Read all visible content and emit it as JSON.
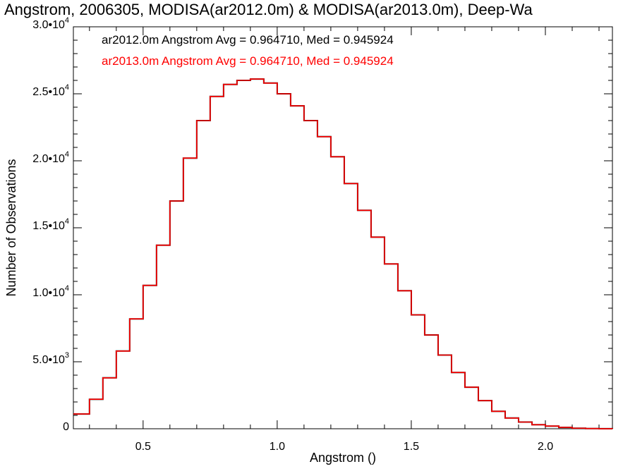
{
  "chart_data": {
    "type": "line",
    "title": "Angstrom, 2006305, MODISA(ar2012.0m) & MODISA(ar2013.0m), Deep-Wa",
    "xlabel": "Angstrom ()",
    "ylabel": "Number of Observations",
    "xlim": [
      0.24,
      2.25
    ],
    "ylim": [
      0,
      30000
    ],
    "x_ticks": [
      {
        "value": 0.5,
        "label": "0.5"
      },
      {
        "value": 1.0,
        "label": "1.0"
      },
      {
        "value": 1.5,
        "label": "1.5"
      },
      {
        "value": 2.0,
        "label": "2.0"
      }
    ],
    "y_ticks": [
      {
        "value": 0,
        "mantissa": "0",
        "exponent": ""
      },
      {
        "value": 5000,
        "mantissa": "5.0•10",
        "exponent": "3"
      },
      {
        "value": 10000,
        "mantissa": "1.0•10",
        "exponent": "4"
      },
      {
        "value": 15000,
        "mantissa": "1.5•10",
        "exponent": "4"
      },
      {
        "value": 20000,
        "mantissa": "2.0•10",
        "exponent": "4"
      },
      {
        "value": 25000,
        "mantissa": "2.5•10",
        "exponent": "4"
      },
      {
        "value": 30000,
        "mantissa": "3.0•10",
        "exponent": "4"
      }
    ],
    "series": [
      {
        "name": "ar2012.0m",
        "color": "#000000",
        "legend": "ar2012.0m Angstrom Avg = 0.964710, Med = 0.945924",
        "x": [
          0.24,
          0.3,
          0.35,
          0.4,
          0.45,
          0.5,
          0.55,
          0.6,
          0.65,
          0.7,
          0.75,
          0.8,
          0.85,
          0.9,
          0.95,
          1.0,
          1.05,
          1.1,
          1.15,
          1.2,
          1.25,
          1.3,
          1.35,
          1.4,
          1.45,
          1.5,
          1.55,
          1.6,
          1.65,
          1.7,
          1.75,
          1.8,
          1.85,
          1.9,
          1.95,
          2.0,
          2.05,
          2.1,
          2.15,
          2.2,
          2.25
        ],
        "y": [
          1100,
          2200,
          3800,
          5800,
          8200,
          10700,
          13700,
          17000,
          20200,
          23000,
          24800,
          25700,
          26000,
          26100,
          25800,
          25000,
          24100,
          23000,
          21800,
          20300,
          18300,
          16300,
          14300,
          12300,
          10300,
          8500,
          7000,
          5500,
          4200,
          3100,
          2100,
          1300,
          800,
          500,
          300,
          200,
          100,
          40,
          15,
          5,
          0
        ]
      },
      {
        "name": "ar2013.0m",
        "color": "#ff0000",
        "legend": "ar2013.0m Angstrom Avg = 0.964710, Med = 0.945924",
        "x": [
          0.24,
          0.3,
          0.35,
          0.4,
          0.45,
          0.5,
          0.55,
          0.6,
          0.65,
          0.7,
          0.75,
          0.8,
          0.85,
          0.9,
          0.95,
          1.0,
          1.05,
          1.1,
          1.15,
          1.2,
          1.25,
          1.3,
          1.35,
          1.4,
          1.45,
          1.5,
          1.55,
          1.6,
          1.65,
          1.7,
          1.75,
          1.8,
          1.85,
          1.9,
          1.95,
          2.0,
          2.05,
          2.1,
          2.15,
          2.2,
          2.25
        ],
        "y": [
          1100,
          2200,
          3800,
          5800,
          8200,
          10700,
          13700,
          17000,
          20200,
          23000,
          24800,
          25700,
          26000,
          26100,
          25800,
          25000,
          24100,
          23000,
          21800,
          20300,
          18300,
          16300,
          14300,
          12300,
          10300,
          8500,
          7000,
          5500,
          4200,
          3100,
          2100,
          1300,
          800,
          500,
          300,
          200,
          100,
          40,
          15,
          5,
          0
        ]
      }
    ],
    "grid": false,
    "legend_position": "top-left inside plot"
  }
}
